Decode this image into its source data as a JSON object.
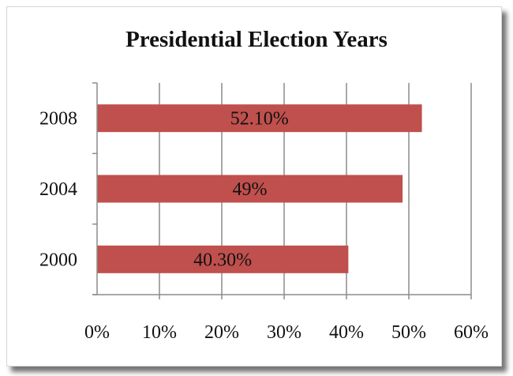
{
  "chart_data": {
    "type": "bar",
    "orientation": "horizontal",
    "title": "Presidential Election Years",
    "categories": [
      "2000",
      "2004",
      "2008"
    ],
    "values": [
      40.3,
      49,
      52.1
    ],
    "data_labels": [
      "40.30%",
      "49%",
      "52.10%"
    ],
    "x_ticks": [
      "0%",
      "10%",
      "20%",
      "30%",
      "40%",
      "50%",
      "60%"
    ],
    "xlim": [
      0,
      60
    ],
    "grid": "vertical",
    "legend": "none",
    "colors": {
      "bar": "#c0504d",
      "grid": "#8c8c8c",
      "axis": "#8c8c8c"
    }
  }
}
